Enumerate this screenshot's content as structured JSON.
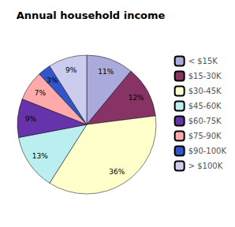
{
  "chart_data": {
    "type": "pie",
    "title": "Annual household income",
    "categories": [
      "< $15K",
      "$15-30K",
      "$30-45K",
      "$45-60K",
      "$60-75K",
      "$75-90K",
      "$90-100K",
      "> $100K"
    ],
    "values": [
      11,
      12,
      36,
      13,
      9,
      7,
      3,
      9
    ],
    "value_labels": [
      "11%",
      "12%",
      "36%",
      "13%",
      "9%",
      "7%",
      "3%",
      "9%"
    ],
    "colors": [
      "#aaaadd",
      "#883366",
      "#ffffcc",
      "#bbeeee",
      "#6633aa",
      "#ffaaaa",
      "#3355cc",
      "#ccccee"
    ],
    "legend": "right",
    "data_labels": true
  }
}
